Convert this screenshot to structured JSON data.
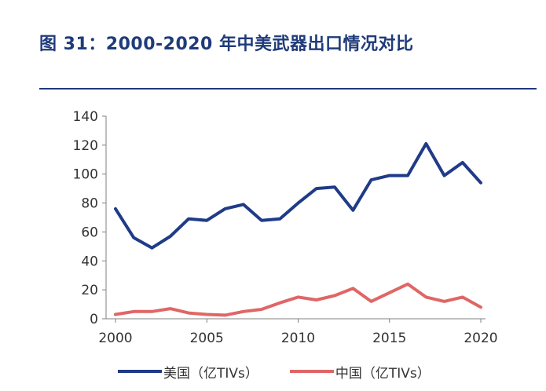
{
  "title": "图 31：2000-2020 年中美武器出口情况对比",
  "colors": {
    "title": "#1f3b7a",
    "usa": "#1f3b88",
    "china": "#e06666",
    "axis": "#808080"
  },
  "chart_data": {
    "type": "line",
    "title": "图 31：2000-2020 年中美武器出口情况对比",
    "xlabel": "",
    "ylabel": "",
    "x": [
      2000,
      2001,
      2002,
      2003,
      2004,
      2005,
      2006,
      2007,
      2008,
      2009,
      2010,
      2011,
      2012,
      2013,
      2014,
      2015,
      2016,
      2017,
      2018,
      2019,
      2020
    ],
    "xlim": [
      2000,
      2020
    ],
    "ylim": [
      0,
      140
    ],
    "x_ticks": [
      "2000",
      "2005",
      "2010",
      "2015",
      "2020"
    ],
    "y_ticks": [
      "0",
      "20",
      "40",
      "60",
      "80",
      "100",
      "120",
      "140"
    ],
    "grid": false,
    "legend_position": "bottom",
    "series": [
      {
        "name": "美国（亿TIVs）",
        "color": "#1f3b88",
        "values": [
          76,
          56,
          49,
          57,
          69,
          68,
          76,
          79,
          68,
          69,
          80,
          90,
          91,
          75,
          96,
          99,
          99,
          121,
          99,
          108,
          94
        ]
      },
      {
        "name": "中国（亿TIVs）",
        "color": "#e06666",
        "values": [
          3,
          5,
          5,
          7,
          4,
          3,
          2.5,
          5,
          6.5,
          11,
          15,
          13,
          16,
          21,
          12,
          18,
          24,
          15,
          12,
          15,
          8
        ]
      }
    ]
  }
}
